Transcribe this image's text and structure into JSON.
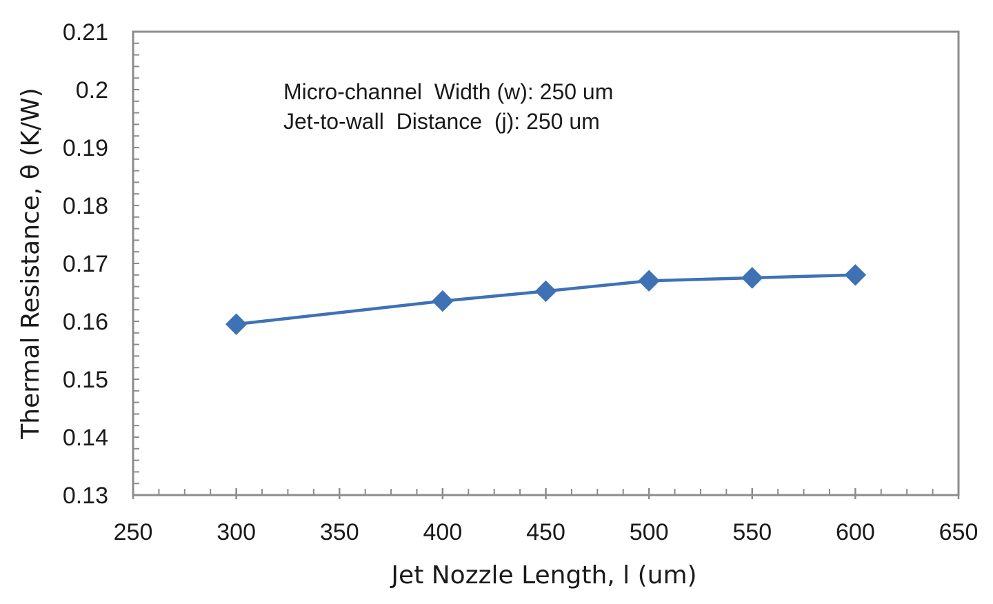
{
  "chart_data": {
    "type": "line",
    "xlabel": "Jet Nozzle Length, l (um)",
    "ylabel": "Thermal Resistance, θ (K/W)",
    "xlim": [
      250,
      650
    ],
    "ylim": [
      0.13,
      0.21
    ],
    "x_ticks": [
      250,
      300,
      350,
      400,
      450,
      500,
      550,
      600,
      650
    ],
    "x_tick_labels": [
      "250",
      "300",
      "350",
      "400",
      "450",
      "500",
      "550",
      "600",
      "650"
    ],
    "y_ticks": [
      0.13,
      0.14,
      0.15,
      0.16,
      0.17,
      0.18,
      0.19,
      0.2,
      0.21
    ],
    "y_tick_labels": [
      "0.13",
      "0.14",
      "0.15",
      "0.16",
      "0.17",
      "0.18",
      "0.19",
      "0.2",
      "0.21"
    ],
    "annotations": [
      "Micro-channel  Width (w): 250 um",
      "Jet-to-wall  Distance  (j): 250 um"
    ],
    "grid": false,
    "series": [
      {
        "marker": "diamond",
        "color": "#3f71b5",
        "x": [
          300,
          400,
          450,
          500,
          550,
          600
        ],
        "y": [
          0.1595,
          0.1635,
          0.1652,
          0.167,
          0.1675,
          0.168
        ]
      }
    ]
  }
}
